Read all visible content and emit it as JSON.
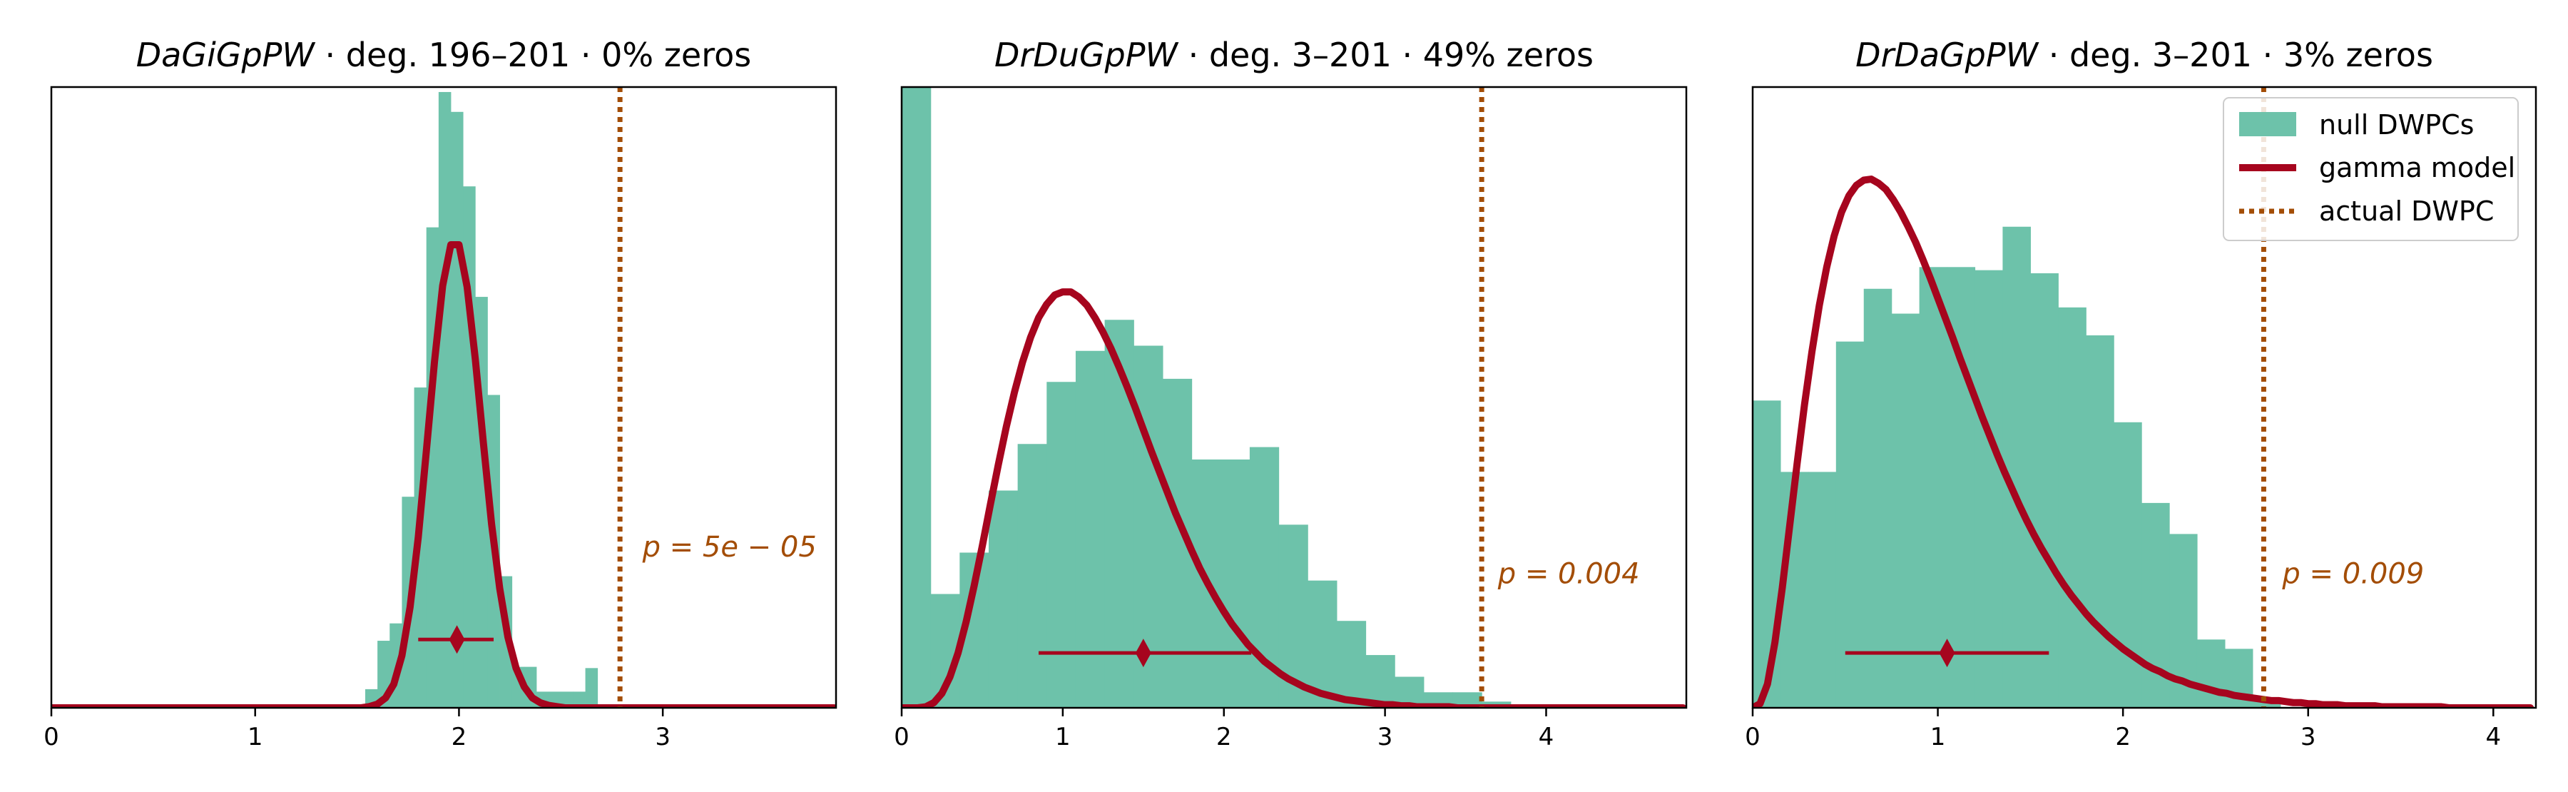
{
  "colors": {
    "histogram": "#6dc2aa",
    "gamma": "#a6051e",
    "actual": "#a34d06",
    "axes": "#000000"
  },
  "legend": {
    "placement": "upper-right of third panel",
    "items": [
      {
        "label": "null DWPCs",
        "kind": "patch"
      },
      {
        "label": "gamma model",
        "kind": "line"
      },
      {
        "label": "actual DWPC",
        "kind": "dotted"
      }
    ]
  },
  "chart_data": [
    {
      "type": "bar",
      "title": {
        "metapath": "DaGiGpPW",
        "rest": " · deg. 196–201 · 0% zeros"
      },
      "xlim": [
        0,
        3.85
      ],
      "ylim": [
        0,
        0.5
      ],
      "xticks": [
        0,
        1,
        2,
        3
      ],
      "bin_width": 0.0593,
      "bin_starts": [
        1.54,
        1.6,
        1.66,
        1.72,
        1.78,
        1.84,
        1.9,
        1.96,
        2.02,
        2.08,
        2.14,
        2.2,
        2.26,
        2.32,
        2.38,
        2.44,
        2.5,
        2.56,
        2.62
      ],
      "bar_heights": [
        0.015,
        0.054,
        0.068,
        0.17,
        0.258,
        0.387,
        0.496,
        0.48,
        0.42,
        0.331,
        0.252,
        0.106,
        0.033,
        0.033,
        0.013,
        0.013,
        0.013,
        0.013,
        0.032
      ],
      "gamma_curve": {
        "x": [
          0.0,
          0.04,
          0.08,
          0.12,
          0.16,
          0.2,
          0.24,
          0.28,
          0.32,
          0.36,
          0.4,
          0.44,
          0.48,
          0.52,
          0.56,
          0.6,
          0.64,
          0.68,
          0.72,
          0.76,
          0.8,
          0.84,
          0.88,
          0.92,
          0.96,
          1.0,
          1.04,
          1.08,
          1.12,
          1.16,
          1.2,
          1.24,
          1.28,
          1.32,
          1.36,
          1.4,
          1.44,
          1.48,
          1.52,
          1.56,
          1.6,
          1.64,
          1.68,
          1.72,
          1.76,
          1.8,
          1.84,
          1.88,
          1.92,
          1.96,
          2.0,
          2.04,
          2.08,
          2.12,
          2.16,
          2.2,
          2.24,
          2.28,
          2.32,
          2.36,
          2.4,
          2.44,
          2.48,
          2.52,
          2.56,
          2.6,
          2.64,
          2.68,
          2.72,
          2.76,
          2.8,
          2.84,
          2.88,
          2.92,
          2.96,
          3.0,
          3.04,
          3.08,
          3.12,
          3.16,
          3.2,
          3.24,
          3.28,
          3.32,
          3.36,
          3.4,
          3.44,
          3.48,
          3.52,
          3.56,
          3.6,
          3.64,
          3.68,
          3.72,
          3.76,
          3.8,
          3.84
        ],
        "y": [
          0.0,
          0.0,
          0.0,
          0.0,
          0.0,
          0.0,
          0.0,
          0.0,
          0.0,
          0.0,
          0.0,
          0.0,
          0.0,
          0.0,
          0.0,
          0.0,
          0.0,
          0.0,
          0.0,
          0.0,
          0.0,
          0.0,
          0.0,
          0.0,
          0.0,
          0.0,
          0.0,
          0.0,
          0.0,
          0.0,
          0.0,
          0.0,
          0.0,
          0.0,
          0.0,
          0.0,
          0.0,
          0.0,
          0.0,
          0.001,
          0.003,
          0.008,
          0.019,
          0.042,
          0.081,
          0.137,
          0.207,
          0.279,
          0.34,
          0.373,
          0.373,
          0.339,
          0.281,
          0.213,
          0.148,
          0.096,
          0.057,
          0.032,
          0.017,
          0.008,
          0.004,
          0.002,
          0.001,
          0.0,
          0.0,
          0.0,
          0.0,
          0.0,
          0.0,
          0.0,
          0.0,
          0.0,
          0.0,
          0.0,
          0.0,
          0.0,
          0.0,
          0.0,
          0.0,
          0.0,
          0.0,
          0.0,
          0.0,
          0.0,
          0.0,
          0.0,
          0.0,
          0.0,
          0.0,
          0.0,
          0.0,
          0.0,
          0.0,
          0.0,
          0.0,
          0.0,
          0.0
        ]
      },
      "actual_dwpc": 2.79,
      "interval": {
        "mean": 1.99,
        "low": 1.8,
        "high": 2.17,
        "y": 0.055
      },
      "p_value": {
        "label": "p = 5e − 05",
        "x": 2.9,
        "y": 0.13
      }
    },
    {
      "type": "bar",
      "title": {
        "metapath": "DrDuGpPW",
        "rest": " · deg. 3–201 · 49% zeros"
      },
      "xlim": [
        0,
        4.87
      ],
      "ylim": [
        0,
        0.6
      ],
      "xticks": [
        0,
        1,
        2,
        3,
        4
      ],
      "bin_width": 0.18,
      "bin_starts": [
        0.0,
        0.18,
        0.36,
        0.54,
        0.72,
        0.9,
        1.08,
        1.26,
        1.44,
        1.62,
        1.8,
        1.98,
        2.16,
        2.34,
        2.52,
        2.7,
        2.88,
        3.06,
        3.24,
        3.42,
        3.6
      ],
      "bar_heights": [
        0.6,
        0.11,
        0.15,
        0.21,
        0.255,
        0.315,
        0.345,
        0.375,
        0.35,
        0.318,
        0.24,
        0.24,
        0.252,
        0.177,
        0.123,
        0.084,
        0.051,
        0.03,
        0.015,
        0.015,
        0.006
      ],
      "gamma_curve": {
        "x": [
          0.0,
          0.05,
          0.1,
          0.15,
          0.2,
          0.25,
          0.3,
          0.35,
          0.4,
          0.45,
          0.5,
          0.55,
          0.6,
          0.65,
          0.7,
          0.75,
          0.8,
          0.85,
          0.9,
          0.95,
          1.0,
          1.05,
          1.1,
          1.15,
          1.2,
          1.25,
          1.3,
          1.35,
          1.4,
          1.45,
          1.5,
          1.55,
          1.6,
          1.65,
          1.7,
          1.75,
          1.8,
          1.85,
          1.9,
          1.95,
          2.0,
          2.05,
          2.1,
          2.15,
          2.2,
          2.25,
          2.3,
          2.35,
          2.4,
          2.45,
          2.5,
          2.55,
          2.6,
          2.65,
          2.7,
          2.75,
          2.8,
          2.85,
          2.9,
          2.95,
          3.0,
          3.05,
          3.1,
          3.15,
          3.2,
          3.25,
          3.3,
          3.35,
          3.4,
          3.45,
          3.5,
          3.55,
          3.6,
          3.65,
          3.7,
          3.75,
          3.8,
          3.85,
          3.9,
          3.95,
          4.0,
          4.05,
          4.1,
          4.15,
          4.2,
          4.25,
          4.3,
          4.35,
          4.4,
          4.45,
          4.5,
          4.55,
          4.6,
          4.65,
          4.7,
          4.75,
          4.8,
          4.85
        ],
        "y": [
          0.0,
          0.0,
          0.0,
          0.001,
          0.005,
          0.014,
          0.03,
          0.053,
          0.083,
          0.118,
          0.156,
          0.196,
          0.235,
          0.272,
          0.305,
          0.334,
          0.358,
          0.377,
          0.39,
          0.399,
          0.402,
          0.402,
          0.397,
          0.389,
          0.377,
          0.363,
          0.347,
          0.329,
          0.31,
          0.29,
          0.269,
          0.248,
          0.228,
          0.208,
          0.188,
          0.17,
          0.152,
          0.135,
          0.12,
          0.106,
          0.093,
          0.081,
          0.071,
          0.061,
          0.053,
          0.045,
          0.039,
          0.033,
          0.028,
          0.024,
          0.02,
          0.017,
          0.014,
          0.012,
          0.01,
          0.008,
          0.007,
          0.006,
          0.005,
          0.004,
          0.003,
          0.003,
          0.002,
          0.002,
          0.001,
          0.001,
          0.001,
          0.001,
          0.001,
          0.0,
          0.0,
          0.0,
          0.0,
          0.0,
          0.0,
          0.0,
          0.0,
          0.0,
          0.0,
          0.0,
          0.0,
          0.0,
          0.0,
          0.0,
          0.0,
          0.0,
          0.0,
          0.0,
          0.0,
          0.0,
          0.0,
          0.0,
          0.0,
          0.0,
          0.0,
          0.0,
          0.0,
          0.0
        ]
      },
      "actual_dwpc": 3.6,
      "interval": {
        "mean": 1.5,
        "low": 0.85,
        "high": 2.17,
        "y": 0.053
      },
      "p_value": {
        "label": "p = 0.004",
        "x": 3.7,
        "y": 0.13
      }
    },
    {
      "type": "bar",
      "title": {
        "metapath": "DrDaGpPW",
        "rest": " · deg. 3–201 · 3% zeros"
      },
      "xlim": [
        0,
        4.23
      ],
      "ylim": [
        0,
        0.6
      ],
      "xticks": [
        0,
        1,
        2,
        3,
        4
      ],
      "bin_width": 0.15,
      "bin_starts": [
        0.0,
        0.15,
        0.3,
        0.45,
        0.6,
        0.75,
        0.9,
        1.05,
        1.2,
        1.35,
        1.5,
        1.65,
        1.8,
        1.95,
        2.1,
        2.25,
        2.4,
        2.55,
        2.7
      ],
      "bar_heights": [
        0.297,
        0.228,
        0.228,
        0.354,
        0.405,
        0.381,
        0.426,
        0.426,
        0.423,
        0.465,
        0.42,
        0.387,
        0.36,
        0.276,
        0.198,
        0.168,
        0.066,
        0.057,
        0.006
      ],
      "gamma_curve": {
        "x": [
          0.0,
          0.04,
          0.08,
          0.12,
          0.16,
          0.2,
          0.24,
          0.28,
          0.32,
          0.36,
          0.4,
          0.44,
          0.48,
          0.52,
          0.56,
          0.6,
          0.64,
          0.68,
          0.72,
          0.76,
          0.8,
          0.84,
          0.88,
          0.92,
          0.96,
          1.0,
          1.04,
          1.08,
          1.12,
          1.16,
          1.2,
          1.24,
          1.28,
          1.32,
          1.36,
          1.4,
          1.44,
          1.48,
          1.52,
          1.56,
          1.6,
          1.64,
          1.68,
          1.72,
          1.76,
          1.8,
          1.84,
          1.88,
          1.92,
          1.96,
          2.0,
          2.04,
          2.08,
          2.12,
          2.16,
          2.2,
          2.24,
          2.28,
          2.32,
          2.36,
          2.4,
          2.44,
          2.48,
          2.52,
          2.56,
          2.6,
          2.64,
          2.68,
          2.72,
          2.76,
          2.8,
          2.84,
          2.88,
          2.92,
          2.96,
          3.0,
          3.04,
          3.08,
          3.12,
          3.16,
          3.2,
          3.24,
          3.28,
          3.32,
          3.36,
          3.4,
          3.44,
          3.48,
          3.52,
          3.56,
          3.6,
          3.64,
          3.68,
          3.72,
          3.76,
          3.8,
          3.84,
          3.88,
          3.92,
          3.96,
          4.0,
          4.04,
          4.08,
          4.12,
          4.16,
          4.2
        ],
        "y": [
          0.0,
          0.004,
          0.023,
          0.063,
          0.116,
          0.176,
          0.236,
          0.293,
          0.344,
          0.389,
          0.426,
          0.456,
          0.479,
          0.495,
          0.505,
          0.51,
          0.511,
          0.507,
          0.501,
          0.491,
          0.479,
          0.465,
          0.45,
          0.433,
          0.415,
          0.396,
          0.377,
          0.358,
          0.338,
          0.319,
          0.3,
          0.281,
          0.263,
          0.245,
          0.228,
          0.212,
          0.196,
          0.181,
          0.167,
          0.154,
          0.142,
          0.13,
          0.119,
          0.109,
          0.1,
          0.091,
          0.083,
          0.076,
          0.069,
          0.063,
          0.057,
          0.052,
          0.047,
          0.042,
          0.038,
          0.035,
          0.031,
          0.028,
          0.026,
          0.023,
          0.021,
          0.019,
          0.017,
          0.015,
          0.014,
          0.012,
          0.011,
          0.01,
          0.009,
          0.008,
          0.007,
          0.007,
          0.006,
          0.005,
          0.005,
          0.004,
          0.004,
          0.003,
          0.003,
          0.003,
          0.002,
          0.002,
          0.002,
          0.002,
          0.002,
          0.001,
          0.001,
          0.001,
          0.001,
          0.001,
          0.001,
          0.001,
          0.001,
          0.001,
          0.0,
          0.0,
          0.0,
          0.0,
          0.0,
          0.0,
          0.0,
          0.0,
          0.0,
          0.0,
          0.0,
          0.0
        ]
      },
      "actual_dwpc": 2.76,
      "interval": {
        "mean": 1.05,
        "low": 0.5,
        "high": 1.6,
        "y": 0.053
      },
      "p_value": {
        "label": "p = 0.009",
        "x": 2.86,
        "y": 0.13
      }
    }
  ]
}
